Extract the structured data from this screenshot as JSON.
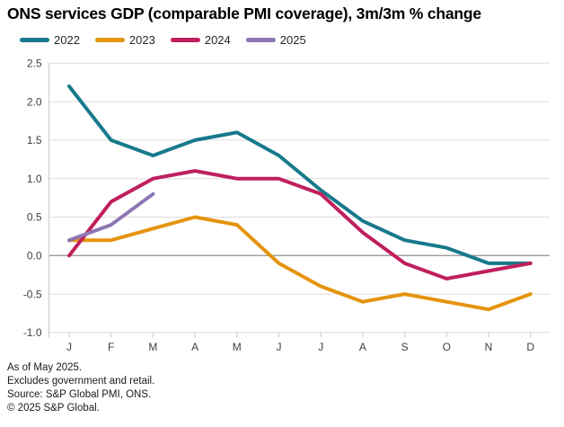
{
  "chart_data": {
    "type": "line",
    "title": "ONS services GDP (comparable PMI coverage), 3m/3m % change",
    "x": [
      "J",
      "F",
      "M",
      "A",
      "M",
      "J",
      "J",
      "A",
      "S",
      "O",
      "N",
      "D"
    ],
    "xlabel": "",
    "ylabel": "",
    "ylim": [
      -1.0,
      2.5
    ],
    "yticks": [
      {
        "value": 2.5,
        "label": "2.5"
      },
      {
        "value": 2.0,
        "label": "2.0"
      },
      {
        "value": 1.5,
        "label": "1.5"
      },
      {
        "value": 1.0,
        "label": "1.0"
      },
      {
        "value": 0.5,
        "label": "0.5"
      },
      {
        "value": 0.0,
        "label": "0.0"
      },
      {
        "value": -0.5,
        "label": "-0.5"
      },
      {
        "value": -1.0,
        "label": "-1.0"
      }
    ],
    "grid": true,
    "legend_position": "top",
    "series": [
      {
        "name": "2022",
        "color": "#17798c",
        "values": [
          2.2,
          1.5,
          1.3,
          1.5,
          1.6,
          1.3,
          0.85,
          0.45,
          0.2,
          0.1,
          -0.1,
          -0.1
        ]
      },
      {
        "name": "2023",
        "color": "#e5940f",
        "values": [
          0.2,
          0.2,
          0.35,
          0.5,
          0.4,
          -0.1,
          -0.4,
          -0.6,
          -0.5,
          -0.6,
          -0.7,
          -0.5
        ]
      },
      {
        "name": "2024",
        "color": "#c01f5e",
        "values": [
          0.0,
          0.7,
          1.0,
          1.1,
          1.0,
          1.0,
          0.8,
          0.3,
          -0.1,
          -0.3,
          -0.2,
          -0.1
        ]
      },
      {
        "name": "2025",
        "color": "#8e76b4",
        "values": [
          0.2,
          0.4,
          0.8
        ]
      }
    ],
    "axis_color": "#c8c8c8",
    "gridline_color": "#dcdcdc",
    "zeroline_color": "#9b9b9b",
    "tick_label_color": "#404040"
  },
  "footer": {
    "line1": "As of May 2025.",
    "line2": "Excludes government and retail.",
    "line3": "Source: S&P Global PMI, ONS.",
    "line4": "© 2025 S&P Global."
  }
}
